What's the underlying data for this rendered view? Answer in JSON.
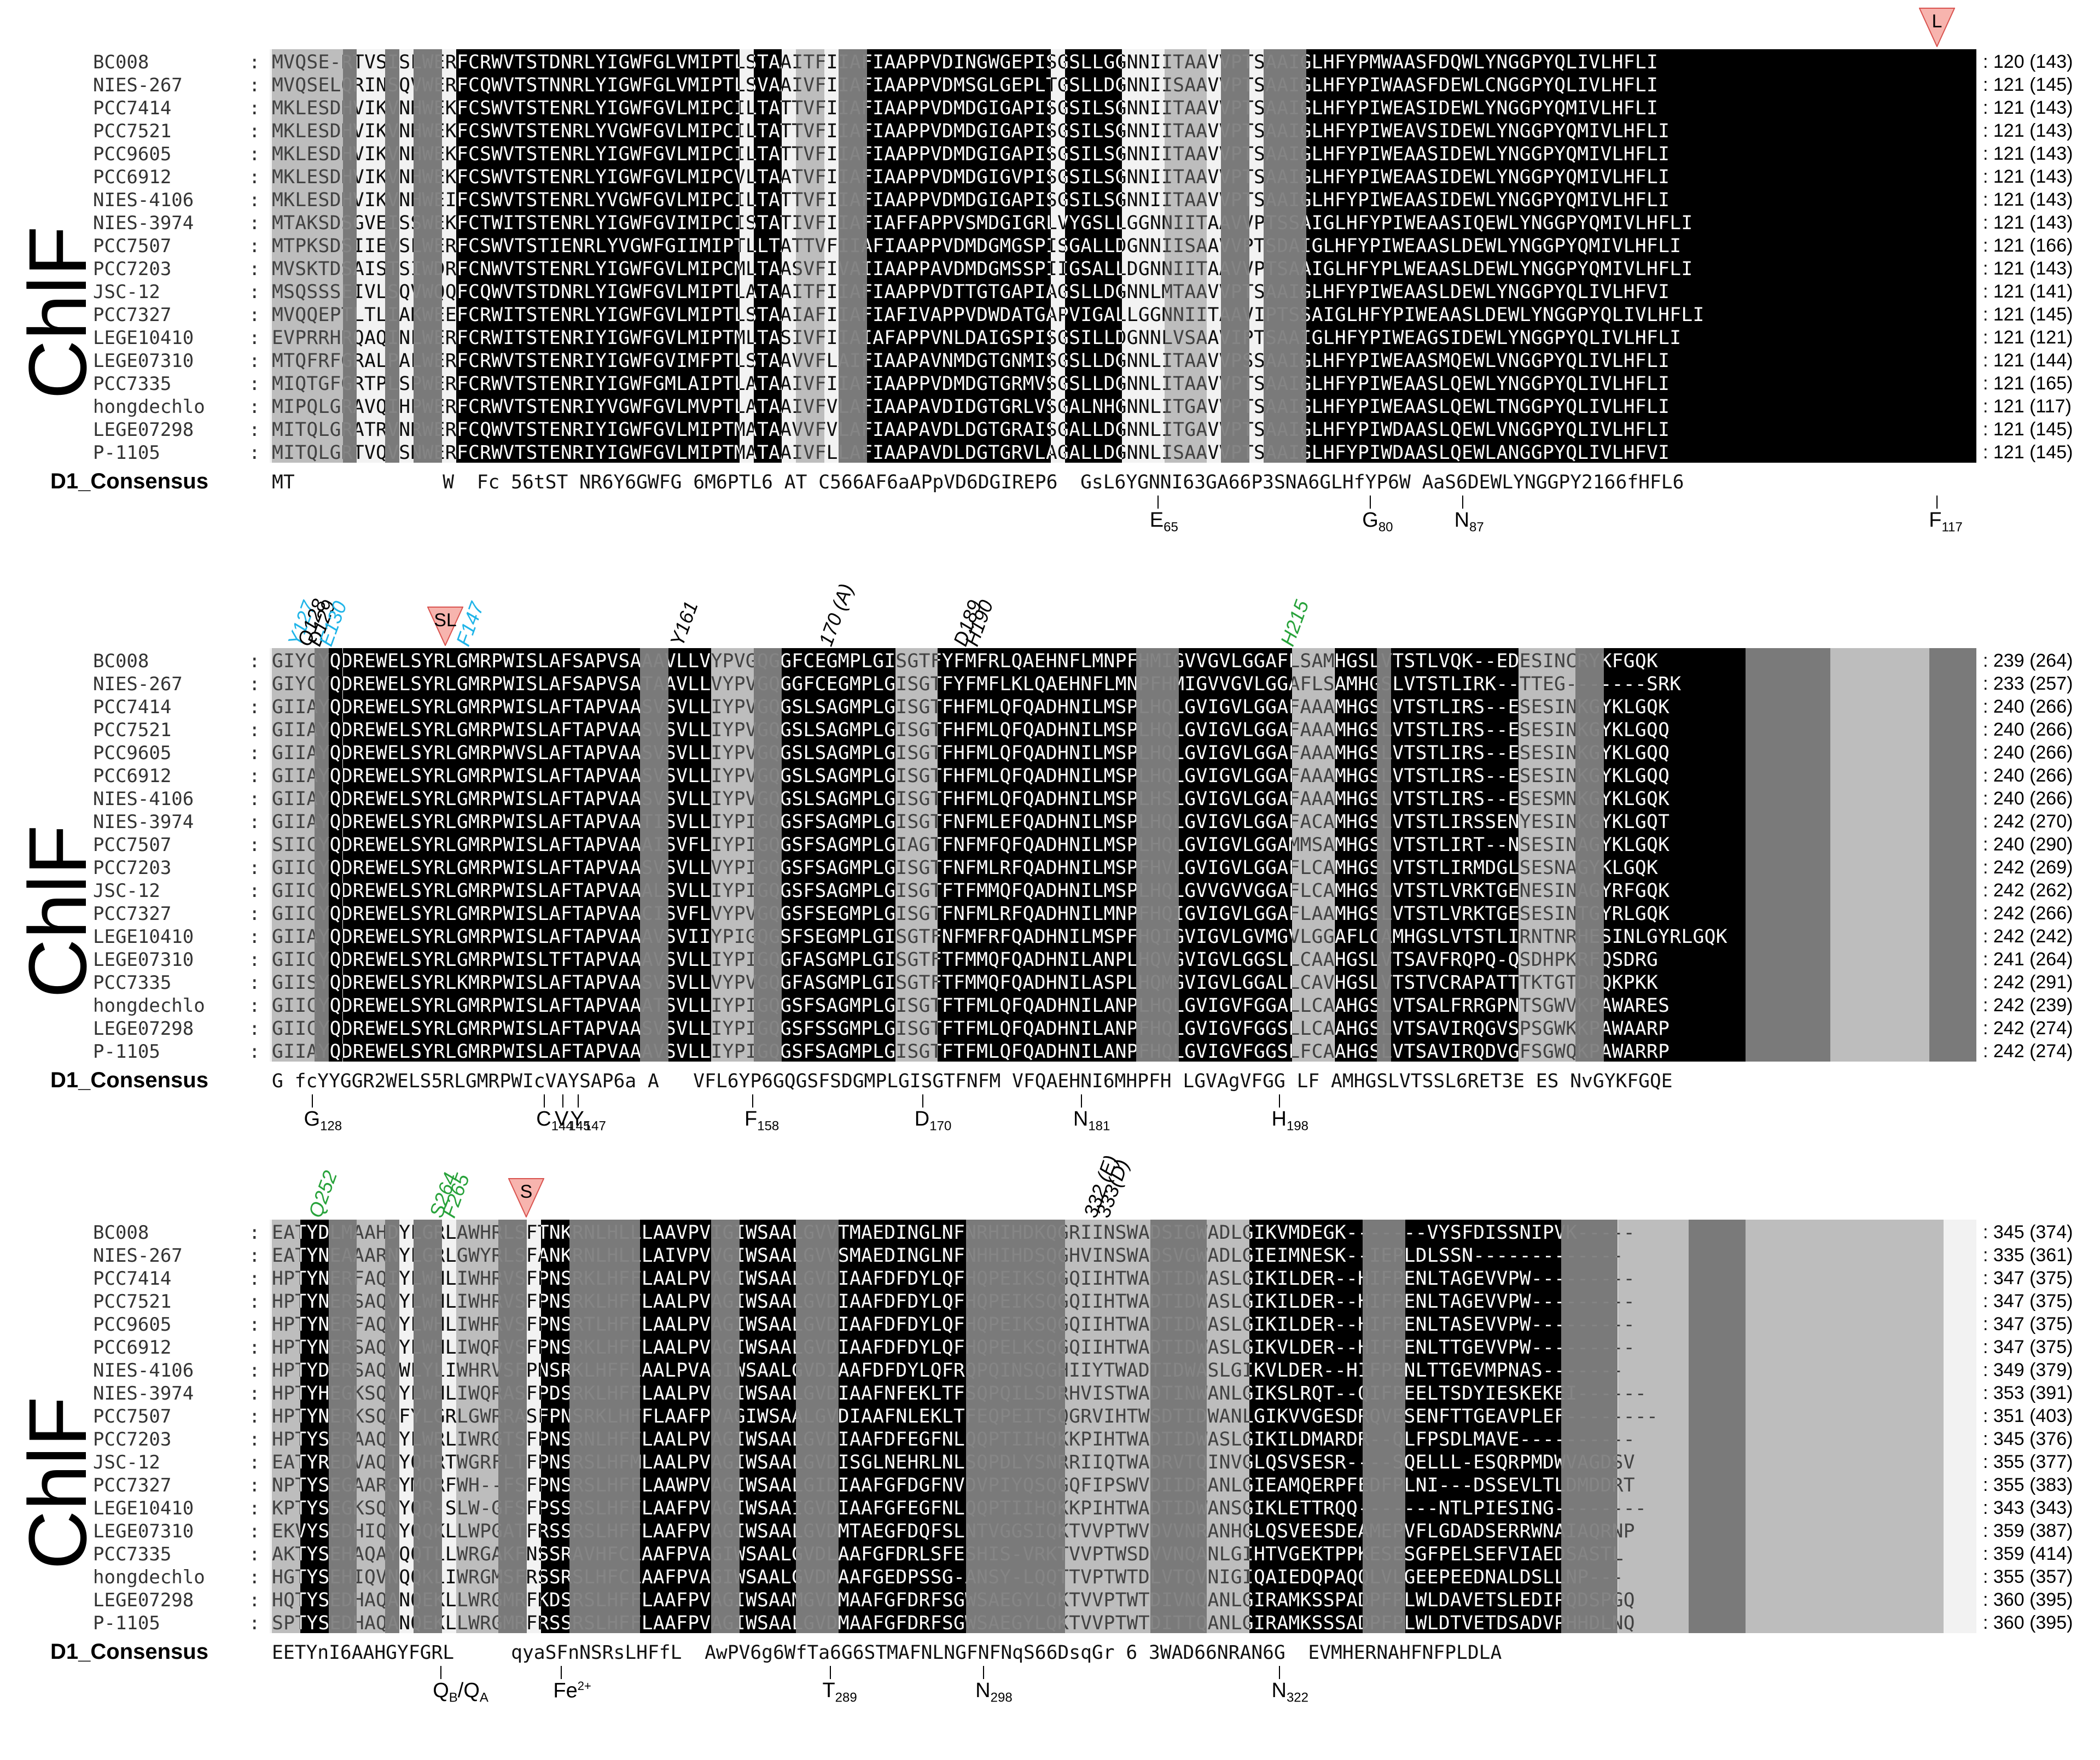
{
  "panel_title": "ChlF",
  "consensus_label": "D1_Consensus",
  "colors": {
    "identical": "#000000",
    "similar_dark": "#7a7a7a",
    "similar_light": "#bdbdbd",
    "background": "#f2f2f2",
    "triangle_fill": "#f7b4ae",
    "cyan": "#1fb4e8",
    "green": "#27a23a"
  },
  "panels": [
    {
      "rows": [
        {
          "name": "BC008",
          "seq": "MVQSE-RTVSISLWERFCRWVTSTDNRLYIGWFGLVMIPTLSTAAITFIIAFIAAPPVDINGWGEPISGSLLGGNNIITAAVVPTSAAIGLHFYPMWAASFDQWLYNGGPYQLIVLHFLI",
          "end": "120 (143)"
        },
        {
          "name": "NIES-267",
          "seq": "MVQSELQRINSQVWERFCQWVTSTNNRLYIGWFGLVMIPTLSVAAIVFIIAFIAAPPVDMSGLGEPLTGSLLDGNNIISAAVVPTSAAIGLHFYPIWAASFDEWLCNGGPYQLIVLHFLI",
          "end": "121 (145)"
        },
        {
          "name": "PCC7414",
          "seq": "MKLESDHVIKVNHWEKFCSWVTSTENRLYIGWFGVLMIPCILTATTVFIIAFIAAPPVDMDGIGAPISGSILSGNNIITAAVVPTSAAIGLHFYPIWEASIDEWLYNGGPYQMIVLHFLI",
          "end": "121 (143)"
        },
        {
          "name": "PCC7521",
          "seq": "MKLESDHVIKVNHWEKFCSWVTSTENRLYVGWFGVLMIPCILTATTVFIIAFIAAPPVDMDGIGAPISGSILSGNNIITAAVVPTSAAIGLHFYPIWEAVSIDEWLYNGGPYQMIVLHFLI",
          "end": "121 (143)"
        },
        {
          "name": "PCC9605",
          "seq": "MKLESDHVIKVNHWEKFCSWVTSTENRLYIGWFGVLMIPCILTATTVFIIAFIAAPPVDMDGIGAPISGSILSGNNIITAAVVPTSAAIGLHFYPIWEAASIDEWLYNGGPYQMIVLHFLI",
          "end": "121 (143)"
        },
        {
          "name": "PCC6912",
          "seq": "MKLESDHVIKVNHWEKFCSWVTSTENRLYIGWFGVLMIPCVLTAATVFIIAFIAAPPVDMDGIGVPISGSILSGNNIITAAVVPTSAAIGLHFYPIWEAASIDEWLYNGGPYQMIVLHFLI",
          "end": "121 (143)"
        },
        {
          "name": "NIES-4106",
          "seq": "MKLESDHVIKVNHWEIFCSWVTSTENRLYVGWFGVLMIPCILTATTVFIIAFIAAPPVDMDGIGAPISGSILSGNNIITAAVVPTSAAIGLHFYPIWEAASIDEWLYNGGPYQMIVLHFLI",
          "end": "121 (143)"
        },
        {
          "name": "NIES-3974",
          "seq": "MTAKSDSGVEISSWEKFCTWITSTENRLYIGWFGVIMIPCISTATIVFIIAFIAFFAPPVSMDGIGRLVYGSLLGGNNIITAAVVPTSSAIGLHFYPIWEAASIQEWLYNGGPYQMIVLHFLI",
          "end": "121 (143)"
        },
        {
          "name": "PCC7507",
          "seq": "MTPKSDSIIEVSLWERFCSWVTSTIENRLYVGWFGIIMIPTLLTATTVFIIAFIAAPPVDMDGMGSPISGALLDGNNIISAAVVPTSDAIGLHFYPIWEAASLDEWLYNGGPYQMIVLHFLI",
          "end": "121 (166)"
        },
        {
          "name": "PCC7203",
          "seq": "MVSKTDSAISTSIWDRFCNWVTSTENRLYIGWFGVLMIPCMLTAASVFIVAIIAAPPAVDMDGMSSPIIGSALLDGNNIITAAVVPTSAAIGLHFYPLWEAASLDEWLYNGGPYQMIVLHFLI",
          "end": "121 (143)"
        },
        {
          "name": "JSC-12",
          "seq": "MSQSSSEIVLSQVWQQFCQWVTSTDNRLYIGWFGVLMIPTLATAAITFIIAFIAAPPVDTTGTGAPIAGSLLDGNNLMTAAVVPTSAAIGLHFYPIWEAASLDEWLYNGGPYQLIVLHFVI",
          "end": "121 (141)"
        },
        {
          "name": "PCC7327",
          "seq": "MVQQEPTLTLIAKWEEFCRWITSTENRLYIGWFGVLMIPTLSTAAIAFIIAFIAFIVAPPVDWDATGAPVIGALLGGNNIITAAVIPTSSAIGLHFYPIWEAASLDEWLYNGGPYQLIVLHFLI",
          "end": "121 (145)"
        },
        {
          "name": "LEGE10410",
          "seq": "EVPRRHRQAQINLWERFCRWITSTENRIYIGWFGVLMIPTMLTASIVFIIAIAFAPPVNLDAIGSPISGSILLDGNNLVSAAVIPTSAAIGLHFYPIWEAGSIDEWLYNGGPYQLIVLHFLI",
          "end": "121 (121)"
        },
        {
          "name": "LEGE07310",
          "seq": "MTQFRFGRALPALWERFCRWVTSTENRIYIGWFGVIMFPTLSTAAVVFLAIFIAAPAVNMDGTGNMISGSLLDGNNLITAAVVPSSAAIGLHFYPIWEAASMQEWLVNGGPYQLIVLHFLI",
          "end": "121 (144)"
        },
        {
          "name": "PCC7335",
          "seq": "MIQTGFGRTPLSPWERFCRWVTSTENRIYIGWFGMLAIPTLATAAIVFIIAFIAAPPVDMDGTGRMVSGSLLDGNNLITAAVVPTSAAIGLHFYPIWEAASLQEWLYNGGPYQLIVLHFLI",
          "end": "121 (165)"
        },
        {
          "name": "hongdechlo",
          "seq": "MIPQLGRAVQIHPWERFCRWVTSTENRIYVGWFGVLMVPTLATAAIVFVLAFIAAPAVDIDGTGRLVSGALNHGNNLITGAVVPTSAAIGLHFYPIWEAASLQEWLTNGGPYQLIVLHFLI",
          "end": "121 (117)"
        },
        {
          "name": "LEGE07298",
          "seq": "MITQLGRATRVNRWERFCQWVTSTENRIYIGWFGVLMIPTMATAAVVFVLAFIAAPAVDLDGTGRAISGALLDGNNLITGAVVPTSAAIGLHFYPIWDAASLQEWLVNGGPYQLIVLHFLI",
          "end": "121 (145)"
        },
        {
          "name": "P-1105",
          "seq": "MITQLGRTVQVSNWERFCRWVTSTENRIYIGWFGVLMIPTMATAAIVFLLAFIAAPAVDLDGTGRVLAGALLDGNNLISAAVVPTSAAIGLHFYPIWDAASLQEWLANGGPYQLIVLHFVI",
          "end": "121 (145)"
        }
      ],
      "consensus": "MT             W  Fc 56tST NR6Y6GWFG 6M6PTL6 AT C566AF6aAPpVD6DGIREP6  GsL6YGNNI63GA66P3SNA6GLHfYP6W AaS6DEWLYNGGPY2166fHFL6",
      "residues_below": [
        {
          "label": "E",
          "sub": "65"
        },
        {
          "label": "G",
          "sub": "80"
        },
        {
          "label": "N",
          "sub": "87"
        },
        {
          "label": "F",
          "sub": "117"
        }
      ],
      "markers_above": [
        {
          "text": "L",
          "kind": "triangle"
        }
      ]
    },
    {
      "rows": [
        {
          "name": "BC008",
          "seq": "GIYCYQDREWELSYRLGMRPWISLAFSAPVSAAAVLLVYPVGQGGFCEGMPLGISGTFYFMFRLQAEHNFLMNPFHMIGVVGVLGGAFLSAMHGSLVTSTLVQK--EDESINCRYKFGQK",
          "end": "239 (264)"
        },
        {
          "name": "NIES-267",
          "seq": "GIYCYQDREWELSYRLGMRPWISLAFSAPVSATAAVLLVYPVGQGGFCEGMPLGISGTFYFMFLKLQAEHNFLMNPFHMIGVVGVLGGAFLSAMHGSLVTSTLIRK--TTEG-------SRK",
          "end": "233 (257)"
        },
        {
          "name": "PCC7414",
          "seq": "GIIAYQDREWELSYRLGMRPWISLAFTAPVAASVSVLLIYPVGQGSLSAGMPLGISGTFHFMLQFQADHNILMSPLHQLGVIGVLGGAFAAAMHGSLVTSTLIRS--ESESINKGYKLGQK",
          "end": "240 (266)"
        },
        {
          "name": "PCC7521",
          "seq": "GIIAYQDREWELSYRLGMRPWISLAFTAPVAASVSVLLIYPVGQGSLSAGMPLGISGTFHFMLQFQADHNILMSPLHQLGVIGVLGGAFAAAMHGSLVTSTLIRS--ESESINKGYKLGQQ",
          "end": "240 (266)"
        },
        {
          "name": "PCC9605",
          "seq": "GIIAYQDREWELSYRLGMRPWVSLAFTAPVAASVSVLLIYPVGQGSLSAGMPLGISGTFHFMLQFQADHNILMSPLHQLGVIGVLGGAFAAAMHGSLVTSTLIRS--ESESINKGYKLGQQ",
          "end": "240 (266)"
        },
        {
          "name": "PCC6912",
          "seq": "GIIAYQDREWELSYRLGMRPWISLAFTAPVAASVSVLLIYPVGQGSLSAGMPLGISGTFHFMLQFQADHNILMSPLHQLGVIGVLGGAFAAAMHGSLVTSTLIRS--ESESINKGYKLGQQ",
          "end": "240 (266)"
        },
        {
          "name": "NIES-4106",
          "seq": "GIIAYQDREWELSYRLGMRPWISLAFTAPVAASVSVLLIYPVGQGSLSAGMPLGISGTFHFMLQFQADHNILMSPLHSLGVIGVLGGAFAAAMHGSLVTSTLIRS--ESESMNKGYKLGQK",
          "end": "240 (266)"
        },
        {
          "name": "NIES-3974",
          "seq": "GIIAYQDREWELSYRLGMRPWISLAFTAPVAATISVLLIYPIGQGSFSAGMPLGISGTFNFMLEFQADHNILMSPLHQLGVIGVLGGAFACAMHGSLVTSTLIRSSENYESINKGYKLGQT",
          "end": "242 (270)"
        },
        {
          "name": "PCC7507",
          "seq": "SIICYQDREWELSYRLGMRPWISLAFTAPVAAAISVFLIYPIGQGSFSAGMPLGIAGTFNFMFQFQADHNILMSPLHQLGVIGVLGGAMMSAMHGSLVTSTLIRT--NSESINAGYKLGQK",
          "end": "240 (290)"
        },
        {
          "name": "PCC7203",
          "seq": "GIICYQDREWELSYRLGMRPWISLAFTAPVAASVSVLLVYPIGQGSFSAGMPLGISGTFNFMLRFQADHNILMSPFHVLGVIGVLGGAFLCAMHGSLVTSTLIRMDGLSESNAGYKLGQK",
          "end": "242 (269)"
        },
        {
          "name": "JSC-12",
          "seq": "GIICYQDREWELSYRLGMRPWISLAFTAPVAAALSVLLIYPIGQGSFSAGMPLGISGTFTFMMQFQADHNILMSPLHQLGVVGVVGGAFLCAMHGSLVTSTLVRKTGENESINAGYRFGQK",
          "end": "242 (262)"
        },
        {
          "name": "PCC7327",
          "seq": "GIICYQDREWELSYRLGMRPWISLAFTAPVAACISVFLVYPVGQGSFSEGMPLGISGTFNFMLRFQADHNILMNPFHQIGVIGVLGGAFLAAMHGSLVTSTLVRKTGESESINTGYRLGQK",
          "end": "242 (266)"
        },
        {
          "name": "LEGE10410",
          "seq": "GIIAYQDREWELSYRLGMRPWISLAFTAPVAAAVSVIIYPIGQGSFSEGMPLGISGTFNFMFRFQADHNILMSPFHQIGVIGVLGVMGVLGGAFLCAMHGSLVTSTLIRNTNRHESINLGYRLGQK",
          "end": "242 (242)"
        },
        {
          "name": "LEGE07310",
          "seq": "GIICYQDREWELSYRLGMRPWISLTFTAPVAAAVSVLLIYPIGQGFASGMPLGISGTFTFMMQFQADHNILANPLHQVGVIGVLGGSLLCAAHGSLVTSAVFRQPQ-QSDHPKRFQSDRG",
          "end": "241 (264)"
        },
        {
          "name": "PCC7335",
          "seq": "GIISYQDREWELSYRLKMRPWISLAFTAPVAASVSVLLVYPVGQGFASGMPLGISGTFTFMMQFQADHNILASPLHQMGVIGVLGGALLCAVHGSLVTSTVCRAPATTTKTGTDRQKPKK",
          "end": "242 (291)"
        },
        {
          "name": "hongdechlo",
          "seq": "GIICYQDREWELSYRLGMRPWISLAFTAPVAAATSVLLIYPIGQGSFSAGMPLGISGTFTFMLQFQADHNILANPLHQLGVIGVFGGALLCAAHGSLVTSALFRRGPNTSGWVKPAWARES",
          "end": "242 (239)"
        },
        {
          "name": "LEGE07298",
          "seq": "GIICYQDREWELSYRLGMRPWISLAFTAPVAASVSVLLIYPIGQGSFSSGMPLGISGTFTFMLQFQADHNILANPFHQLGVIGVFGGSLLCAAHGSLVTSAVIRQGVSPSGWKKPAWAARP",
          "end": "242 (274)"
        },
        {
          "name": "P-1105",
          "seq": "GIIAYQDREWELSYRLGMRPWISLAFTAPVAAAVSVLLIYPIGQGSFSAGMPLGISGTFTFMLQFQADHNILANPFHQLGVIGVFGGSLFCAAHGSLVTSAVIRQDVGFSGWQKPAWARRP",
          "end": "242 (274)"
        }
      ],
      "consensus": "G fcYYGGR2WELS5RLGMRPWIcVAYSAP6a A   VFL6YP6GQGSFSDGMPLGISGTFNFM VFQAEHNI6MHPFH LGVAgVFGG LF AMHGSLVTSSL6RET3E ES NvGYKFGQE",
      "residues_below": [
        {
          "label": "G",
          "sub": "128"
        },
        {
          "label": "C",
          "sub": "144"
        },
        {
          "label": "V",
          "sub": "145"
        },
        {
          "label": "Y",
          "sub": "147"
        },
        {
          "label": "F",
          "sub": "158"
        },
        {
          "label": "D",
          "sub": "170"
        },
        {
          "label": "N",
          "sub": "181"
        },
        {
          "label": "H",
          "sub": "198"
        }
      ],
      "markers_above": [
        {
          "text": "Y127",
          "kind": "cyan"
        },
        {
          "text": "Q128",
          "kind": "black"
        },
        {
          "text": "D129",
          "kind": "black"
        },
        {
          "text": "E130",
          "kind": "cyan"
        },
        {
          "text": "SL",
          "kind": "triangle"
        },
        {
          "text": "F147",
          "kind": "cyan"
        },
        {
          "text": "Y161",
          "kind": "black"
        },
        {
          "text": "170 (A)",
          "kind": "black"
        },
        {
          "text": "D189",
          "kind": "black"
        },
        {
          "text": "H190",
          "kind": "black"
        },
        {
          "text": "H215",
          "kind": "green"
        }
      ]
    },
    {
      "rows": [
        {
          "name": "BC008",
          "seq": "EATYDLMAAHDYLGRLAWHRLSFTNKRNLHLLLAAVPVIGIWSAALGVVTMAEDINGLNFNRHIHDKQGRIINSWADSIGWADLGIKVMDEGK-------VYSFDISSNIPVK-----",
          "end": "345 (374)"
        },
        {
          "name": "NIES-267",
          "seq": "EATYNEAAARNYLGRLGWYRLSFANKRNLHLLLAIVPVVGIWSAALGVVSMAEDINGLNFNHHIHDSQGHVINSWADSVGWADLGIEIMNESK--IEPLDLSSN-------------",
          "end": "335 (361)"
        },
        {
          "name": "PCC7414",
          "seq": "HPTYNERFAQIYLWHLIWHRVSFPNSRKLHFFLAALPVAGIWSAALGVDIAAFDFDYLQFHQPEIKSQGQIIHTWADTIDWASLGIKILDER--HIFPENLTAGEVVPW---------",
          "end": "347 (375)"
        },
        {
          "name": "PCC7521",
          "seq": "HPTYNERSAQVYLWHLIWHRVSFPNSRKLHFFLAALPVAGIWSAALGVDIAAFDFDYLQFHQPEIKSQGQIIHTWADTIDWASLGIKILDER--HIFPENLTAGEVVPW---------",
          "end": "347 (375)"
        },
        {
          "name": "PCC9605",
          "seq": "HPTYNERFAQVYLWHLIWHRVSFPNSRTLHFFLAALPVAGIWSAALGVDIAAFDFDYLQFHQPEIKSQGQIIHTWADTIDWASLGIKILDER--HIFPENLTASEVVPW---------",
          "end": "347 (375)"
        },
        {
          "name": "PCC6912",
          "seq": "HPTYNERSAQVYLWHLIWQRVSFPNSRKLHFFLAALPVAGIWSAALGVDIAAFDFDYLQFHQPELKSQGQIIHTWADTIDWASLGIKVLDER--HIFPENLTTGEVVPW---------",
          "end": "347 (375)"
        },
        {
          "name": "NIES-4106",
          "seq": "HPTYDERSAQVWLYLIWHRVSFPNSRKLHFFLAALPVAGIWSAALGVDIAAFDFDYLQFRQPQINSQGHIIYTWADTIDWASLGIKVLDER--HIFPENLTTGEVMPNAS-------",
          "end": "349 (379)"
        },
        {
          "name": "NIES-3974",
          "seq": "HPTYHEGKSQVYLWHLIWQRASFPDSRKLHFFLAALPVAGIWSAALGVDIAAFNFEKLTFSQPQILSDRHVISTWADTINWANLGIKSLRQT--QIFPEELTSDYIESKEKEI------",
          "end": "353 (391)"
        },
        {
          "name": "PCC7507",
          "seq": "HPTYNERKSQAFYLGRLGWRRASFPNSRKLHFFLAAFPVAGIWSAALGVDIAAFNLEKLTFEQPEITSQGRVIHTWSDTIDWANLGIKVVGESDRQVESENFTTGEAVPLEF--------",
          "end": "351 (403)"
        },
        {
          "name": "PCC7203",
          "seq": "HPTYSERAAQLYLWRLIWRGTSFPNSRNLHFFLAALPVAGIWSAALGVDIAAFDFEGFNLQQPTIIHQKKPIHTWADTIDWASLGIKILDMARDR--QLFPSDLMAVE----------",
          "end": "345 (376)"
        },
        {
          "name": "JSC-12",
          "seq": "EATYREDVAQTYQHRTWGRFLTFPNSRSLHFMLAALPVAGIWSAALGVDISGLNEHRLNLSQPDLYSNRRIIQTWADRVTQINVGLQSVSESR----SQELLL-ESQRPMDWVAGDSV",
          "end": "355 (377)"
        },
        {
          "name": "PCC7327",
          "seq": "NPTYSEGAARGYMQRFWH--FSFPNSRSLHFFLAAWPVAGIWSAALGIDIAAFGFDGFNVDVPIYQSQGQFIPSWVDIIDRANLGIEAMQERPFEDFPLNI---DSSEVLTLDMDDRT",
          "end": "355 (383)"
        },
        {
          "name": "LEGE10410",
          "seq": "KPTYSEGKSQNYQR-SLW-GFSFPSSRSLHFFLAAFPVAGIWSAAIGVDIAAFGFEGFNLQQPTIIHQKKPIHTWADTIDWANSGIKLETTRQQ-------NTLPIESING--------",
          "end": "343 (343)"
        },
        {
          "name": "LEGE07310",
          "seq": "EKVYSEDHIQNYQQKLLWPGATFRSSRSLHFFLAAFPVAGIWSAALGVDMTAEGFDQFSLNTVGGSIQKTVVPTWVDVVNRANHGLQSVEESDEAMEPVFLGDADSERRWNAIAQRNP",
          "end": "359 (387)"
        },
        {
          "name": "PCC7335",
          "seq": "AKTYSEHAQAYQQTLLWRGAKFNSSRAVHFCLAAFPVAGIWSAALGVDLAAFGFDRLSFESHIS-VRKTVVPTWSDVVNQANLGIHTVGEKTPPKESESGFPELSEFVIAEDSASTL",
          "end": "359 (414)"
        },
        {
          "name": "hongdechlo",
          "seq": "HGTYSEHIQVNQQKLIWRGMSFRSSRSLHFCLAAFPVAGIWSAALGVDMAAFGEDPSSG-ANSY-LQQTTVPTWTDLVTQVNIGIQAIEDQPAQQLVLGEEPEEDNALDSLLNP---",
          "end": "355 (357)"
        },
        {
          "name": "LEGE07298",
          "seq": "HQTYSEDHAQANQEKLLWRGMRFKDSRSLHFFLAAFPVAGIWSAAMGVDMAAFGFDRFSGWSAEGYLQKTVVPTWTDIVNQANLGIRAMKSSPADPFPLWLDAVETSLEDIPQDSPGQ",
          "end": "360 (395)"
        },
        {
          "name": "P-1105",
          "seq": "SPTYSEDHAQANQEKLLWRGMRFRSSRSLHFFLAAFPVAGIWSAALGVDMAAFGFDRFSGWSAEGYLQKTVVPTWTDITTQANLGIRAMKSSSADPFPLWLDTVETDSADVPHHDLNQ",
          "end": "360 (395)"
        }
      ],
      "consensus": "EETYnI6AAHGYFGRL     qyaSFnNSRsLHFfL  AwPV6g6WfTa6G6STMAFNLNGFNFNqS66DsqGr 6 3WAD66NRAN6G  EVMHERNAHFNFPLDLA",
      "residues_below": [
        {
          "label": "Q",
          "sub": "B",
          "label2": "/Q",
          "sub2": "A"
        },
        {
          "label": "Fe",
          "sup": "2+"
        },
        {
          "label": "T",
          "sub": "289"
        },
        {
          "label": "N",
          "sub": "298"
        },
        {
          "label": "N",
          "sub": "322"
        }
      ],
      "markers_above": [
        {
          "text": "Q252",
          "kind": "green"
        },
        {
          "text": "S264",
          "kind": "green"
        },
        {
          "text": "F265",
          "kind": "green"
        },
        {
          "text": "S",
          "kind": "triangle"
        },
        {
          "text": "332 (E)",
          "kind": "black"
        },
        {
          "text": "333(D)",
          "kind": "black"
        }
      ]
    }
  ]
}
